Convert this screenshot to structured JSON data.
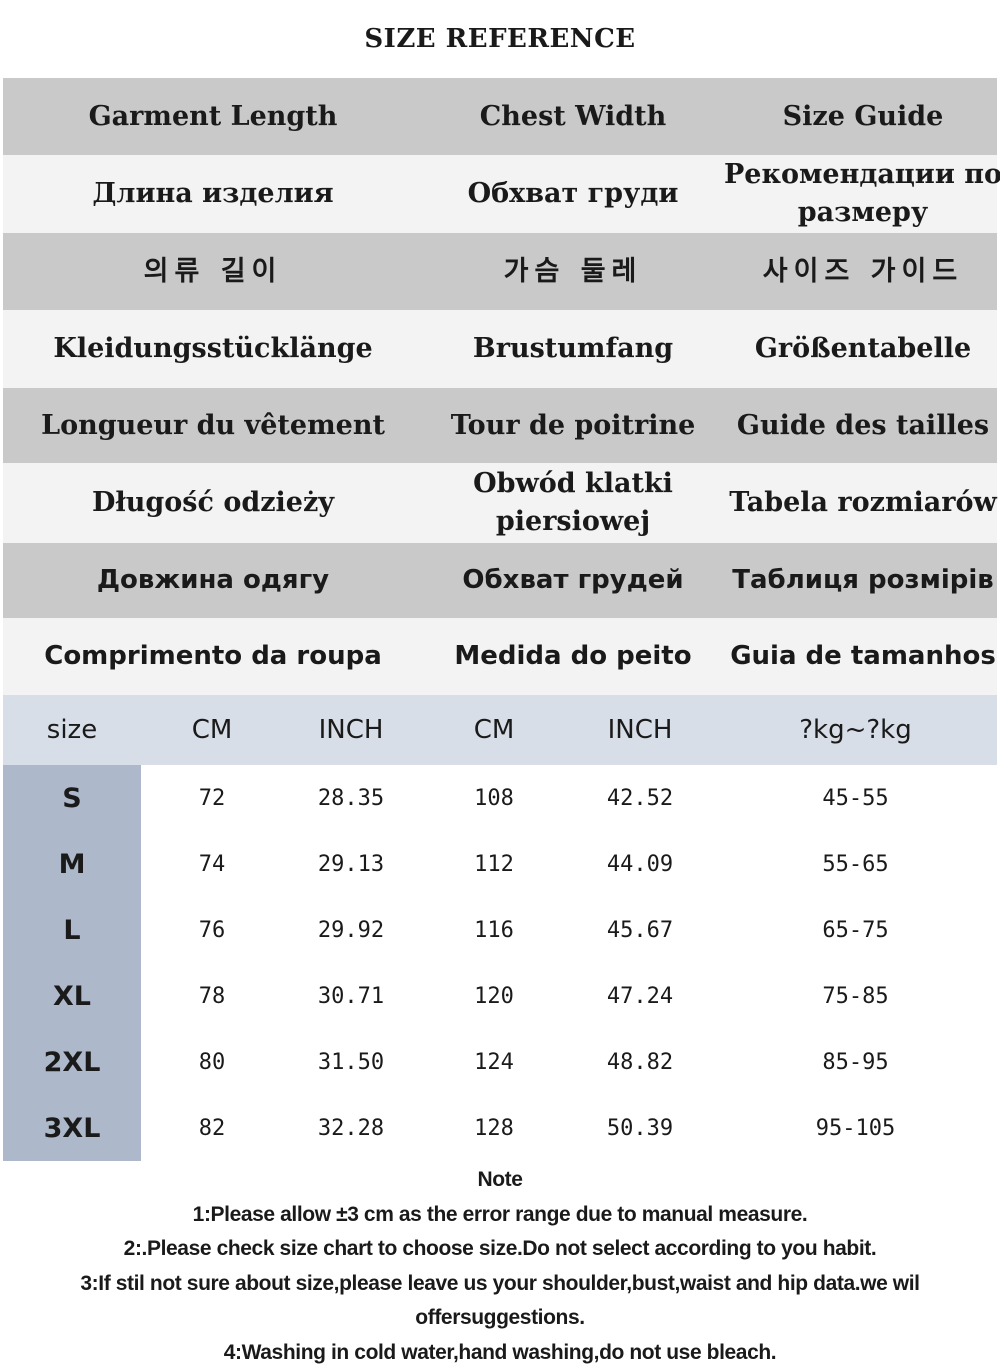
{
  "title": "SIZE REFERENCE",
  "label_rows": [
    [
      "Garment Length",
      "Chest Width",
      "Size Guide"
    ],
    [
      "Длина изделия",
      "Обхват груди",
      "Рекомендации по размеру"
    ],
    [
      "의류 길이",
      "가슴 둘레",
      "사이즈 가이드"
    ],
    [
      "Kleidungsstücklänge",
      "Brustumfang",
      "Größentabelle"
    ],
    [
      "Longueur du vêtement",
      "Tour de poitrine",
      "Guide des tailles"
    ],
    [
      "Długość odzieży",
      "Obwód klatki piersiowej",
      "Tabela rozmiarów"
    ],
    [
      "Довжина одягу",
      "Обхват грудей",
      "Таблиця розмірів"
    ],
    [
      "Comprimento da roupa",
      "Medida do peito",
      "Guia de tamanhos"
    ]
  ],
  "table": {
    "headers": [
      "size",
      "CM",
      "INCH",
      "CM",
      "INCH",
      "?kg~?kg"
    ],
    "rows": [
      [
        "S",
        "72",
        "28.35",
        "108",
        "42.52",
        "45-55"
      ],
      [
        "M",
        "74",
        "29.13",
        "112",
        "44.09",
        "55-65"
      ],
      [
        "L",
        "76",
        "29.92",
        "116",
        "45.67",
        "65-75"
      ],
      [
        "XL",
        "78",
        "30.71",
        "120",
        "47.24",
        "75-85"
      ],
      [
        "2XL",
        "80",
        "31.50",
        "124",
        "48.82",
        "85-95"
      ],
      [
        "3XL",
        "82",
        "32.28",
        "128",
        "50.39",
        "95-105"
      ]
    ]
  },
  "notes": {
    "heading": "Note",
    "items": [
      "1:Please allow ±3 cm as the error range due to manual measure.",
      "2:.Please check size chart to choose size.Do not select according to you habit.",
      "3:If stil not sure about size,please leave us your shoulder,bust,waist and hip data.we wil offersuggestions.",
      "4:Washing in cold water,hand washing,do not use bleach."
    ]
  },
  "colors": {
    "grey_row": "#c9c9c9",
    "light_row": "#f3f3f3",
    "header_row": "#d7dee7",
    "size_column": "#adb9ca"
  }
}
